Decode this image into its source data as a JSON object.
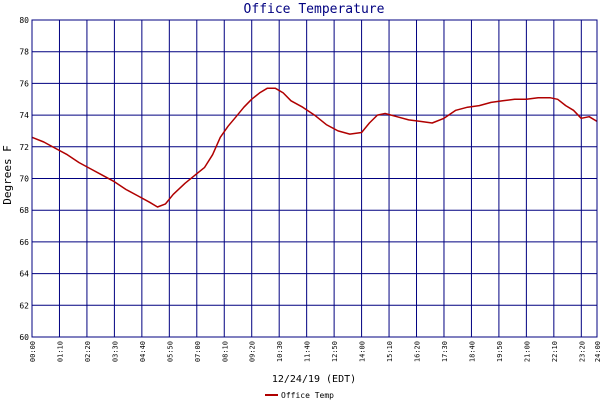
{
  "chart_data": {
    "type": "line",
    "title": "Office Temperature",
    "xlabel": "12/24/19 (EDT)",
    "ylabel": "Degrees F",
    "ylim": [
      60,
      80
    ],
    "yticks": [
      "60",
      "62",
      "64",
      "66",
      "68",
      "70",
      "72",
      "74",
      "76",
      "78",
      "80"
    ],
    "xlim_hours": [
      0,
      24
    ],
    "xticks": [
      "00:00",
      "01:10",
      "02:20",
      "03:30",
      "04:40",
      "05:50",
      "07:00",
      "08:10",
      "09:20",
      "10:30",
      "11:40",
      "12:50",
      "14:00",
      "15:10",
      "16:20",
      "17:30",
      "18:40",
      "19:50",
      "21:00",
      "22:10",
      "23:20",
      "24:00"
    ],
    "grid": true,
    "legend_position": "bottom-left",
    "series": [
      {
        "name": "Office Temp",
        "color": "#b00000",
        "x": [
          0.0,
          0.5,
          1.0,
          1.5,
          2.0,
          2.5,
          3.0,
          3.5,
          4.0,
          4.5,
          5.0,
          5.33,
          5.67,
          6.0,
          6.5,
          7.0,
          7.33,
          7.67,
          8.0,
          8.33,
          8.67,
          9.0,
          9.33,
          9.67,
          10.0,
          10.33,
          10.67,
          11.0,
          11.5,
          12.0,
          12.5,
          13.0,
          13.5,
          14.0,
          14.33,
          14.67,
          15.0,
          15.5,
          16.0,
          16.5,
          17.0,
          17.5,
          18.0,
          18.5,
          19.0,
          19.5,
          20.0,
          20.5,
          21.0,
          21.5,
          22.0,
          22.33,
          22.67,
          23.0,
          23.33,
          23.67,
          24.0
        ],
        "y": [
          72.6,
          72.3,
          71.9,
          71.5,
          71.0,
          70.6,
          70.2,
          69.8,
          69.3,
          68.9,
          68.5,
          68.2,
          68.4,
          69.0,
          69.7,
          70.3,
          70.7,
          71.5,
          72.6,
          73.3,
          73.9,
          74.5,
          75.0,
          75.4,
          75.7,
          75.7,
          75.4,
          74.9,
          74.5,
          74.0,
          73.4,
          73.0,
          72.8,
          72.9,
          73.5,
          74.0,
          74.1,
          73.9,
          73.7,
          73.6,
          73.5,
          73.8,
          74.3,
          74.5,
          74.6,
          74.8,
          74.9,
          75.0,
          75.0,
          75.1,
          75.1,
          75.0,
          74.6,
          74.3,
          73.8,
          73.9,
          73.6
        ]
      }
    ]
  }
}
